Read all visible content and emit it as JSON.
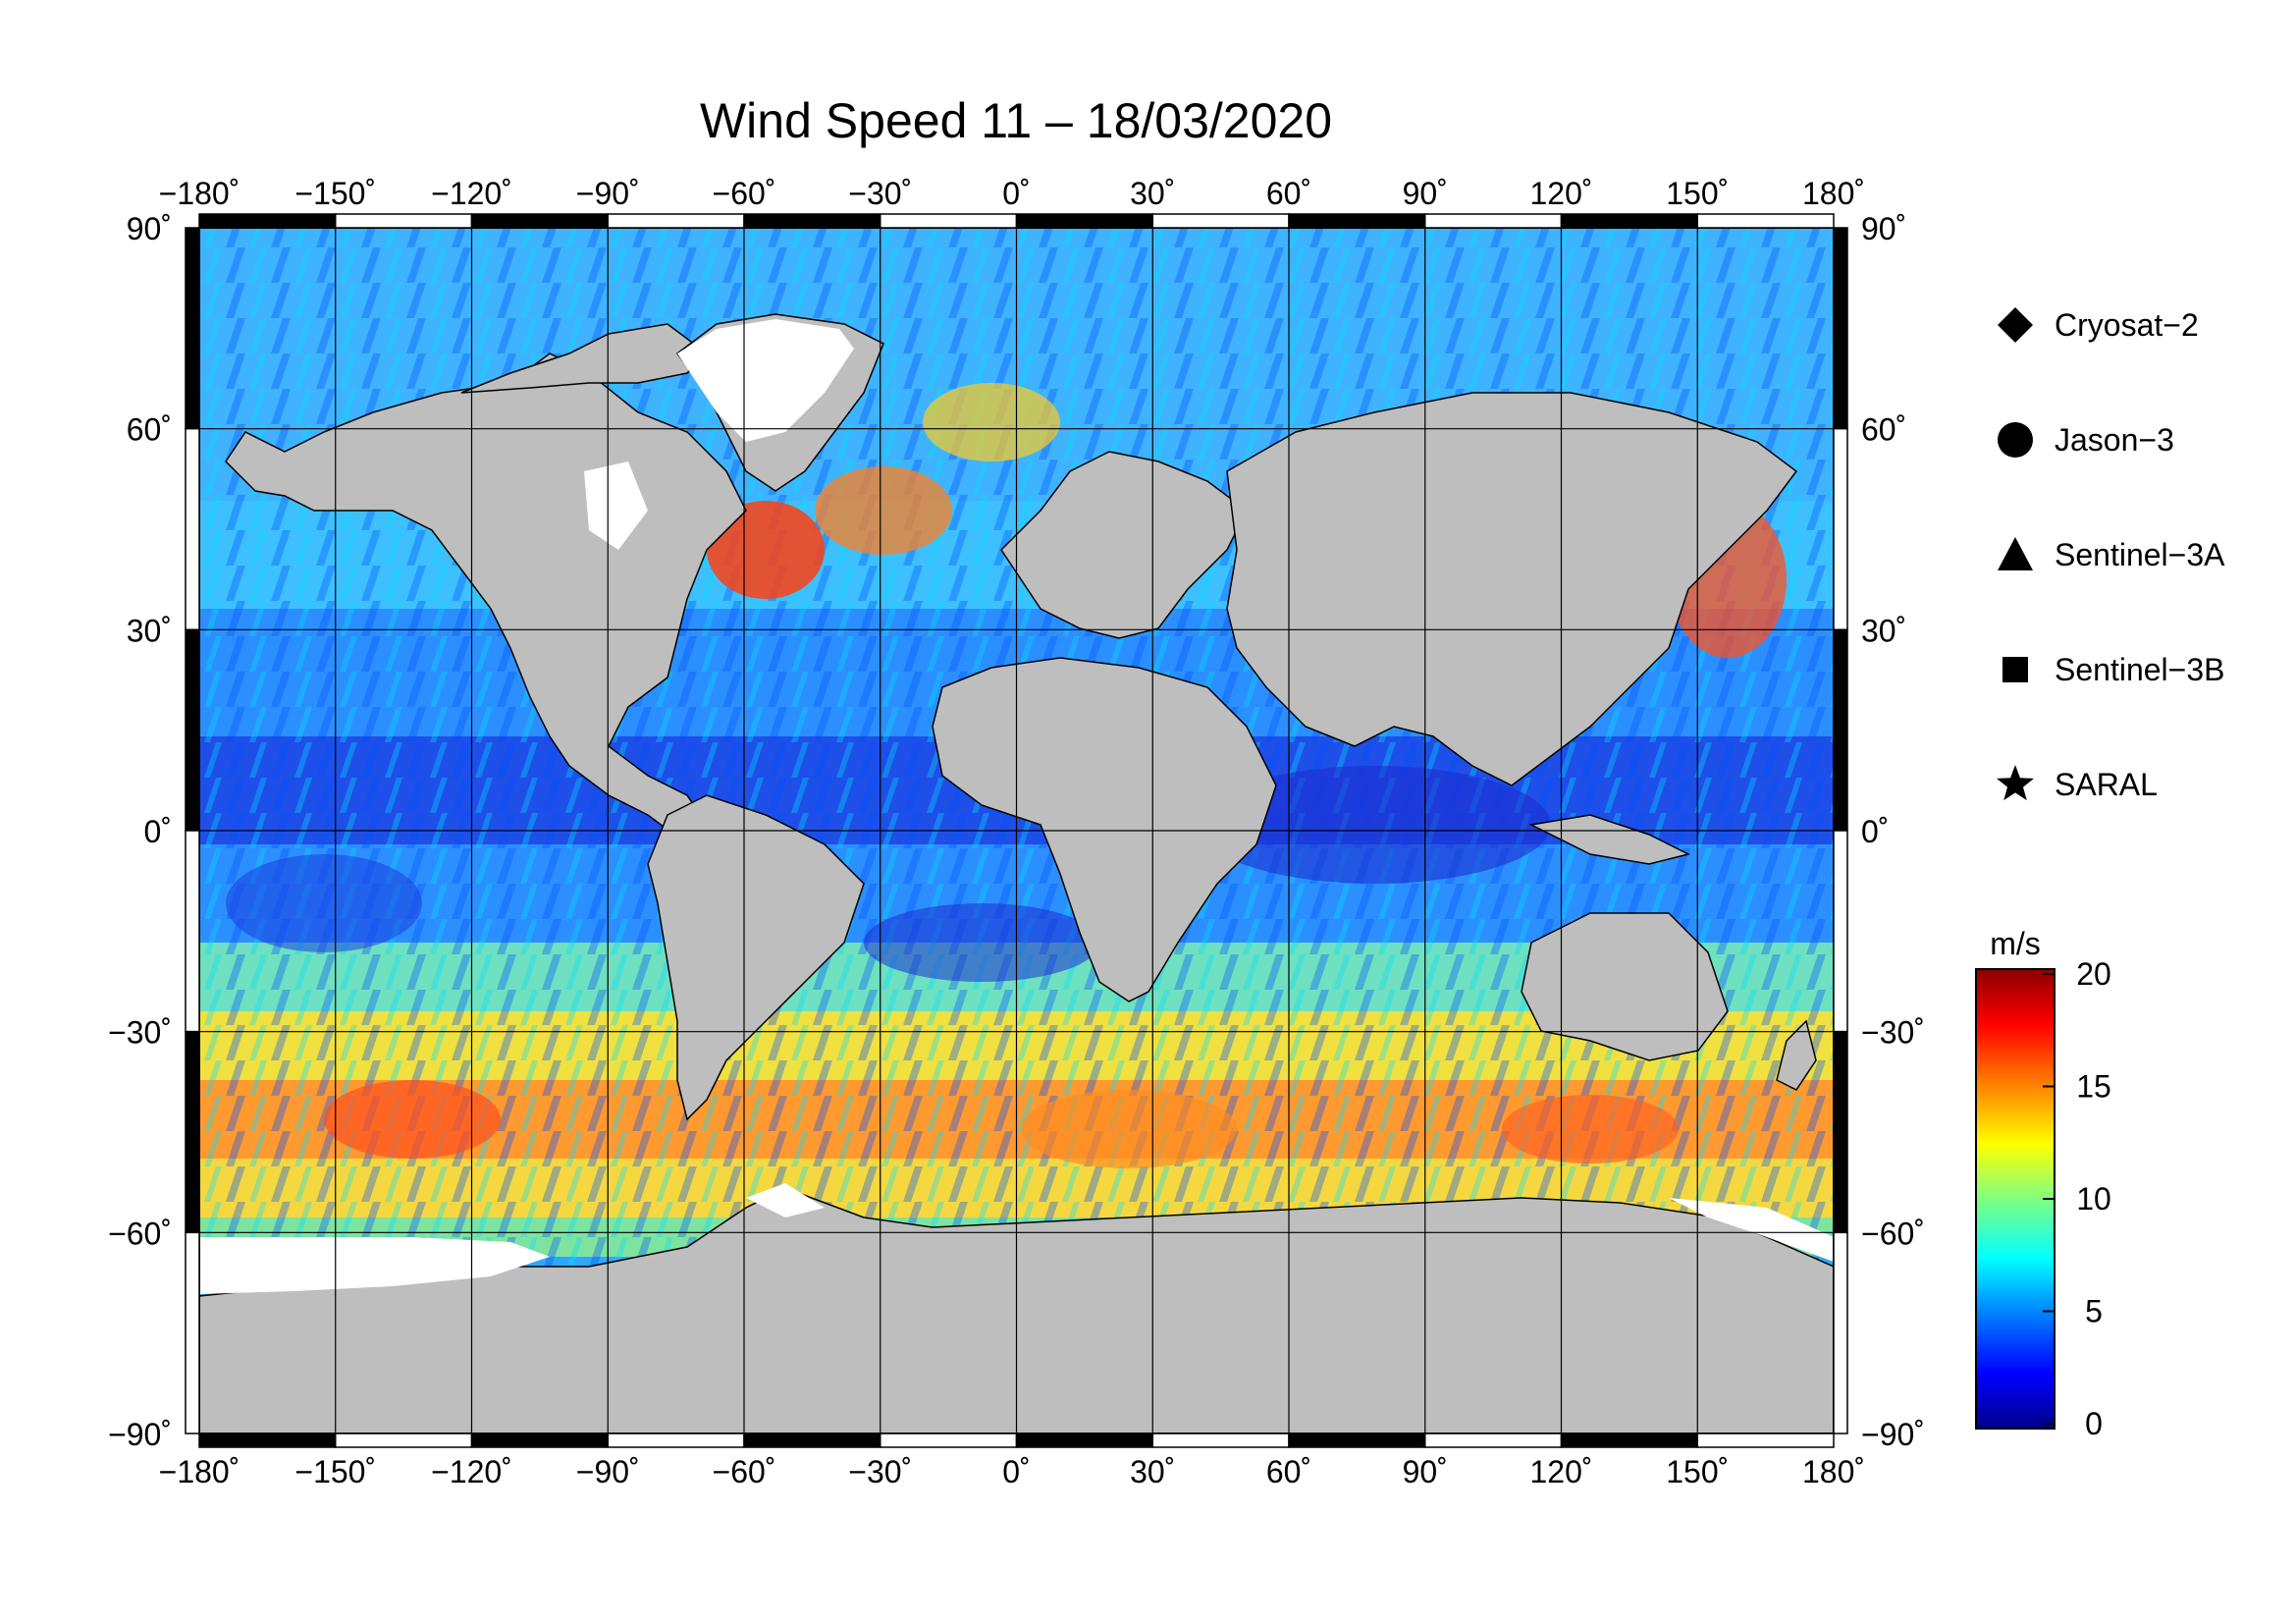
{
  "title": "Wind Speed 11 – 18/03/2020",
  "map": {
    "projection": "equirectangular",
    "lon_range": [
      -180,
      180
    ],
    "lat_range": [
      -90,
      90
    ],
    "lon_ticks": [
      -180,
      -150,
      -120,
      -90,
      -60,
      -30,
      0,
      30,
      60,
      90,
      120,
      150,
      180
    ],
    "lat_ticks": [
      90,
      60,
      30,
      0,
      -30,
      -60,
      -90
    ],
    "lon_tick_labels": [
      "−180˚",
      "−150˚",
      "−120˚",
      "−90˚",
      "−60˚",
      "−30˚",
      "0˚",
      "30˚",
      "60˚",
      "90˚",
      "120˚",
      "150˚",
      "180˚"
    ],
    "lat_tick_labels": [
      "90˚",
      "60˚",
      "30˚",
      "0˚",
      "−30˚",
      "−60˚",
      "−90˚"
    ],
    "grid": true,
    "colors": {
      "land": "#bebebe",
      "ice": "#ffffff",
      "grid": "#000000"
    }
  },
  "legend": {
    "placement": "right",
    "items": [
      {
        "label": "Cryosat−2",
        "symbol": "diamond"
      },
      {
        "label": "Jason−3",
        "symbol": "circle"
      },
      {
        "label": "Sentinel−3A",
        "symbol": "triangle"
      },
      {
        "label": "Sentinel−3B",
        "symbol": "square"
      },
      {
        "label": "SARAL",
        "symbol": "star"
      }
    ]
  },
  "colorbar": {
    "unit": "m/s",
    "min": 0,
    "max": 20,
    "ticks": [
      20,
      15,
      10,
      5,
      0
    ],
    "tick_labels": [
      "20",
      "15",
      "10",
      "5",
      "0"
    ],
    "colormap": [
      "#00008b",
      "#0000ff",
      "#0080ff",
      "#00ffff",
      "#80ff80",
      "#ffff00",
      "#ff8000",
      "#ff0000",
      "#8b0000"
    ]
  }
}
